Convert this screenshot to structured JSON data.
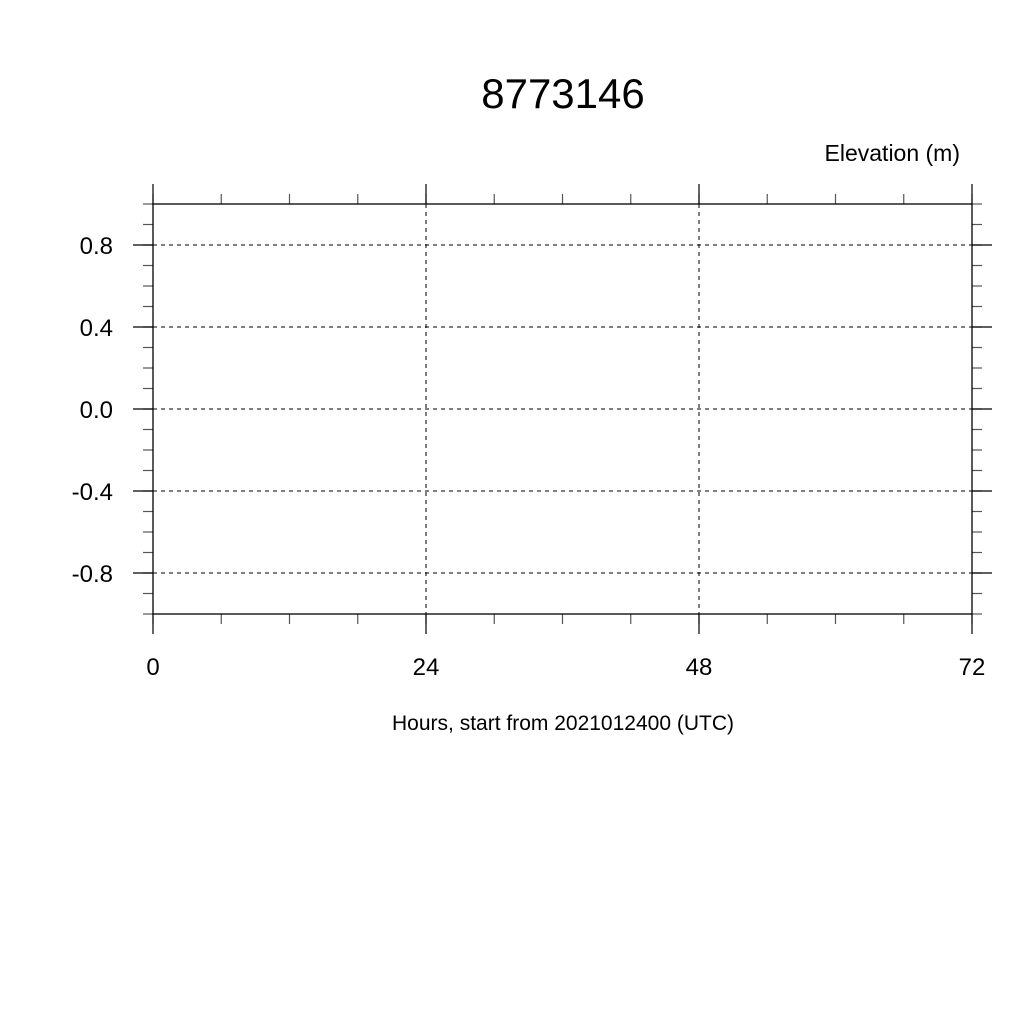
{
  "chart_data": {
    "type": "line",
    "title": "8773146",
    "ylabel": "Elevation (m)",
    "xlabel": "Hours, start from 2021012400 (UTC)",
    "xlim": [
      0,
      72
    ],
    "ylim": [
      -1.0,
      1.0
    ],
    "x_ticks": [
      0,
      24,
      48,
      72
    ],
    "x_tick_labels": [
      "0",
      "24",
      "48",
      "72"
    ],
    "x_minor_step": 6,
    "y_ticks": [
      0.8,
      0.4,
      0.0,
      -0.4,
      -0.8
    ],
    "y_tick_labels": [
      "0.8",
      "0.4",
      "0.0",
      "-0.4",
      "-0.8"
    ],
    "y_minor_step": 0.1,
    "grid": true,
    "series": []
  }
}
